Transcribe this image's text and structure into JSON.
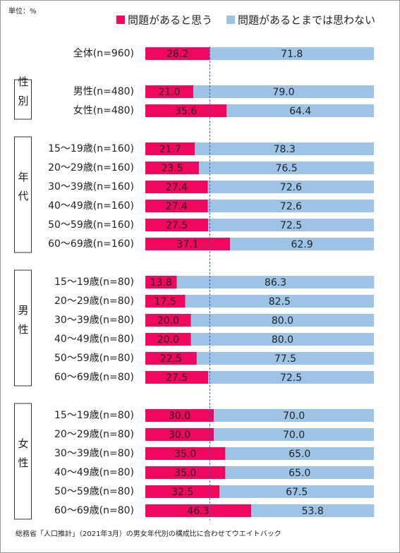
{
  "chart_data": {
    "type": "bar",
    "orientation": "horizontal",
    "stacked": true,
    "unit_label": "単位：%",
    "footnote": "総務省「人口推計」（2021年3月）の男女年代別の構成比に合わせてウエイトバック",
    "groups": [
      null,
      "性別",
      "年代",
      "男性",
      "女性"
    ],
    "categories": [
      [
        "全体(n=960)"
      ],
      [
        "男性(n=480)",
        "女性(n=480)"
      ],
      [
        "15～19歳(n=160)",
        "20～29歳(n=160)",
        "30～39歳(n=160)",
        "40～49歳(n=160)",
        "50～59歳(n=160)",
        "60～69歳(n=160)"
      ],
      [
        "15～19歳(n=80)",
        "20～29歳(n=80)",
        "30～39歳(n=80)",
        "40～49歳(n=80)",
        "50～59歳(n=80)",
        "60～69歳(n=80)"
      ],
      [
        "15～19歳(n=80)",
        "20～29歳(n=80)",
        "30～39歳(n=80)",
        "40～49歳(n=80)",
        "50～59歳(n=80)",
        "60～69歳(n=80)"
      ]
    ],
    "xlim": [
      0,
      100
    ],
    "reference_line": true,
    "series": [
      {
        "name": "問題があると思う",
        "color": "#f0085f",
        "values": [
          [
            28.2
          ],
          [
            21.0,
            35.6
          ],
          [
            21.7,
            23.5,
            27.4,
            27.4,
            27.5,
            37.1
          ],
          [
            13.8,
            17.5,
            20.0,
            20.0,
            22.5,
            27.5
          ],
          [
            30.0,
            30.0,
            35.0,
            35.0,
            32.5,
            46.3
          ]
        ],
        "value_labels": [
          [
            "28.2"
          ],
          [
            "21.0",
            "35.6"
          ],
          [
            "21.7",
            "23.5",
            "27.4",
            "27.4",
            "27.5",
            "37.1"
          ],
          [
            "13.8",
            "17.5",
            "20.0",
            "20.0",
            "22.5",
            "27.5"
          ],
          [
            "30.0",
            "30.0",
            "35.0",
            "35.0",
            "32.5",
            "46.3"
          ]
        ]
      },
      {
        "name": "問題があるとまでは思わない",
        "color": "#9dc3e6",
        "values": [
          [
            71.8
          ],
          [
            79.0,
            64.4
          ],
          [
            78.3,
            76.5,
            72.6,
            72.6,
            72.5,
            62.9
          ],
          [
            86.3,
            82.5,
            80.0,
            80.0,
            77.5,
            72.5
          ],
          [
            70.0,
            70.0,
            65.0,
            65.0,
            67.5,
            53.8
          ]
        ],
        "value_labels": [
          [
            "71.8"
          ],
          [
            "79.0",
            "64.4"
          ],
          [
            "78.3",
            "76.5",
            "72.6",
            "72.6",
            "72.5",
            "62.9"
          ],
          [
            "86.3",
            "82.5",
            "80.0",
            "80.0",
            "77.5",
            "72.5"
          ],
          [
            "70.0",
            "70.0",
            "65.0",
            "65.0",
            "67.5",
            "53.8"
          ]
        ]
      }
    ]
  }
}
